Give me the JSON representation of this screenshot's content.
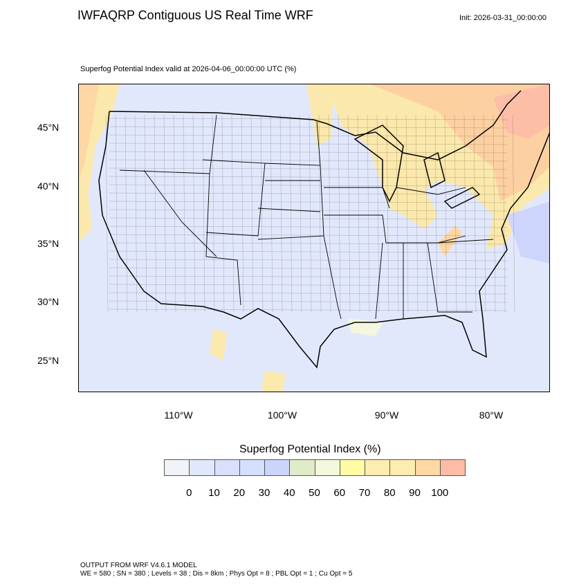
{
  "header": {
    "title": "IWFAQRP Contiguous US Real Time WRF",
    "init": "Init: 2026-03-31_00:00:00",
    "subtitle": "Superfog Potential Index valid at 2026-04-06_00:00:00 UTC   (%)"
  },
  "map": {
    "variable": "Superfog Potential Index",
    "units": "%",
    "lat_labels": [
      "45°N",
      "40°N",
      "35°N",
      "30°N",
      "25°N"
    ],
    "lon_labels": [
      "110°W",
      "100°W",
      "90°W",
      "80°W"
    ],
    "background_color": "#e2e8fc",
    "high_regions": [
      "Pacific Northwest coast",
      "Northeast / New England",
      "Great Lakes region",
      "Appalachians",
      "Gulf of Mexico coast",
      "Northern Mexico"
    ]
  },
  "colorbar": {
    "title": "Superfog Potential Index  (%)",
    "colors": [
      "#f0f4f8",
      "#e2e8fc",
      "#d8e0fc",
      "#d6e0fc",
      "#ccd4fc",
      "#e0ecc8",
      "#f4f8dc",
      "#fffca4",
      "#ffecb0",
      "#ffecb0",
      "#ffd8a4",
      "#ffbca4"
    ],
    "labels": [
      "0",
      "10",
      "20",
      "30",
      "40",
      "50",
      "60",
      "70",
      "80",
      "90",
      "100"
    ]
  },
  "footer": {
    "line1": "OUTPUT FROM WRF V4.6.1 MODEL",
    "line2": "WE = 580 ; SN = 380 ; Levels = 38 ; Dis = 8km ; Phys Opt = 8 ; PBL Opt = 1 ; Cu Opt = 5"
  }
}
